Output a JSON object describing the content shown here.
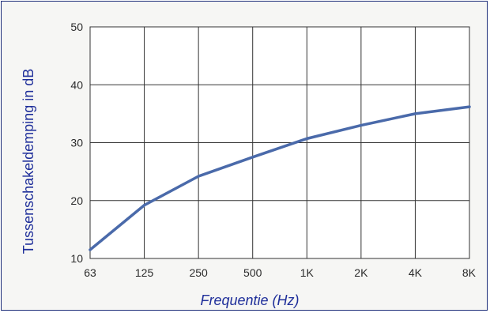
{
  "chart_data": {
    "type": "line",
    "title": "",
    "xlabel": "Frequentie (Hz)",
    "ylabel": "Tussenschakeldemping in dB",
    "categories": [
      "63",
      "125",
      "250",
      "500",
      "1K",
      "2K",
      "4K",
      "8K"
    ],
    "ylim": [
      10,
      50
    ],
    "yticks": [
      10,
      20,
      30,
      40,
      50
    ],
    "grid": true,
    "legend": "none",
    "line_color": "#4a6aaa",
    "series": [
      {
        "values": [
          11.5,
          19.2,
          24.2,
          27.5,
          30.7,
          33.0,
          35.0,
          36.2
        ]
      }
    ]
  }
}
